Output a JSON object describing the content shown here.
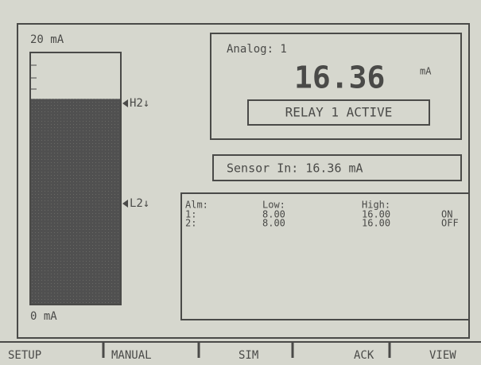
{
  "gauge": {
    "max": {
      "value": 20,
      "label": "20 mA"
    },
    "min": {
      "value": 0,
      "label": "0 mA"
    },
    "high_marker": "H2↓",
    "low_marker": "L2↓"
  },
  "analog": {
    "title": "Analog: 1",
    "value": 16.36,
    "unit": "mA",
    "status": "RELAY 1 ACTIVE"
  },
  "sensor": "Sensor In: 16.36 mA",
  "alarms": {
    "headers": [
      "Alm:",
      "Low:",
      "High:"
    ],
    "rows": [
      {
        "id": "1:",
        "low": {
          "value": 8,
          "label": "8.00"
        },
        "high": {
          "value": 16,
          "label": "16.00"
        },
        "state": "ON"
      },
      {
        "id": "2:",
        "low": {
          "value": 8,
          "label": "8.00"
        },
        "high": {
          "value": 16,
          "label": "16.00"
        },
        "state": "OFF"
      }
    ]
  },
  "softkeys": [
    "SETUP",
    "MANUAL",
    "SIM",
    "ACK",
    "VIEW"
  ]
}
